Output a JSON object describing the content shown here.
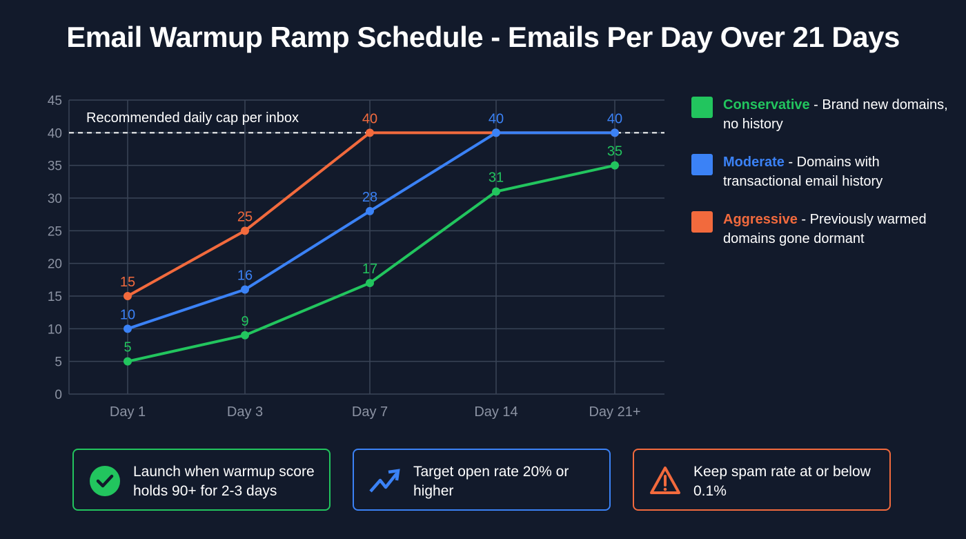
{
  "chart_data": {
    "type": "line",
    "title": "Email Warmup Ramp Schedule - Emails Per Day Over 21 Days",
    "categories": [
      "Day 1",
      "Day 3",
      "Day 7",
      "Day 14",
      "Day 21+"
    ],
    "ylim": [
      0,
      45
    ],
    "yticks": [
      0,
      5,
      10,
      15,
      20,
      25,
      30,
      35,
      40,
      45
    ],
    "grid": true,
    "legend_position": "right",
    "series": [
      {
        "name": "Aggressive",
        "color": "#f26a3d",
        "values": [
          15,
          25,
          40,
          40,
          40
        ]
      },
      {
        "name": "Moderate",
        "color": "#3b82f6",
        "values": [
          10,
          16,
          28,
          40,
          40
        ]
      },
      {
        "name": "Conservative",
        "color": "#22c55e",
        "values": [
          5,
          9,
          17,
          31,
          35
        ]
      }
    ],
    "reference_line": {
      "value": 40,
      "label": "Recommended daily cap per inbox",
      "style": "dashed"
    }
  },
  "legend": [
    {
      "name": "Conservative",
      "desc": " - Brand new domains, no history",
      "color": "#22c55e"
    },
    {
      "name": "Moderate",
      "desc": " - Domains with transactional email history",
      "color": "#3b82f6"
    },
    {
      "name": "Aggressive",
      "desc": " - Previously warmed domains gone dormant",
      "color": "#f26a3d"
    }
  ],
  "callouts": [
    {
      "text": "Launch when warmup score holds 90+ for 2-3 days",
      "icon": "check-circle-icon",
      "color": "#22c55e"
    },
    {
      "text": "Target open rate 20% or higher",
      "icon": "trending-up-icon",
      "color": "#3b82f6"
    },
    {
      "text": "Keep spam rate at or below 0.1%",
      "icon": "warning-triangle-icon",
      "color": "#f26a3d"
    }
  ]
}
